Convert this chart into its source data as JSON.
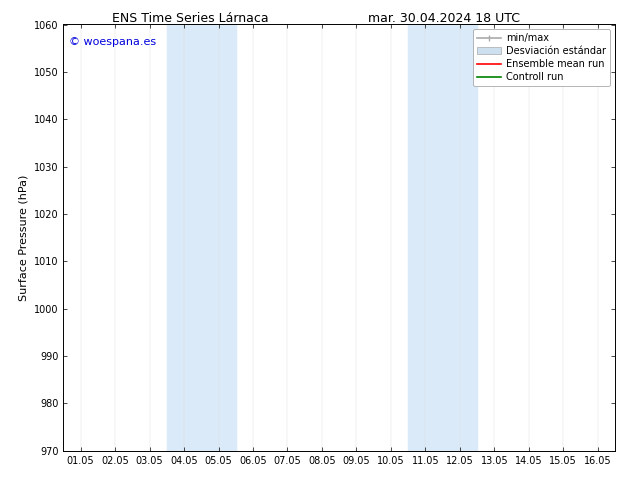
{
  "title_left": "ENS Time Series Lárnaca",
  "title_right": "mar. 30.04.2024 18 UTC",
  "ylabel": "Surface Pressure (hPa)",
  "ylim": [
    970,
    1060
  ],
  "yticks": [
    970,
    980,
    990,
    1000,
    1010,
    1020,
    1030,
    1040,
    1050,
    1060
  ],
  "xtick_labels": [
    "01.05",
    "02.05",
    "03.05",
    "04.05",
    "05.05",
    "06.05",
    "07.05",
    "08.05",
    "09.05",
    "10.05",
    "11.05",
    "12.05",
    "13.05",
    "14.05",
    "15.05",
    "16.05"
  ],
  "xtick_positions": [
    0,
    1,
    2,
    3,
    4,
    5,
    6,
    7,
    8,
    9,
    10,
    11,
    12,
    13,
    14,
    15
  ],
  "shaded_regions": [
    {
      "x_start": 3.0,
      "x_end": 5.0,
      "color": "#daeaf8"
    },
    {
      "x_start": 10.0,
      "x_end": 12.0,
      "color": "#daeaf8"
    }
  ],
  "watermark_text": "© woespana.es",
  "watermark_color": "#0000dd",
  "background_color": "#ffffff",
  "plot_bg_color": "#ffffff",
  "legend_label_minmax": "min/max",
  "legend_label_std": "Desviación estándar",
  "legend_label_ens": "Ensemble mean run",
  "legend_label_ctrl": "Controll run",
  "minmax_color": "#aaaaaa",
  "std_color": "#cce0f0",
  "ens_color": "#ff0000",
  "ctrl_color": "#008000",
  "title_fontsize": 9,
  "axis_label_fontsize": 8,
  "tick_fontsize": 7,
  "legend_fontsize": 7,
  "watermark_fontsize": 8
}
